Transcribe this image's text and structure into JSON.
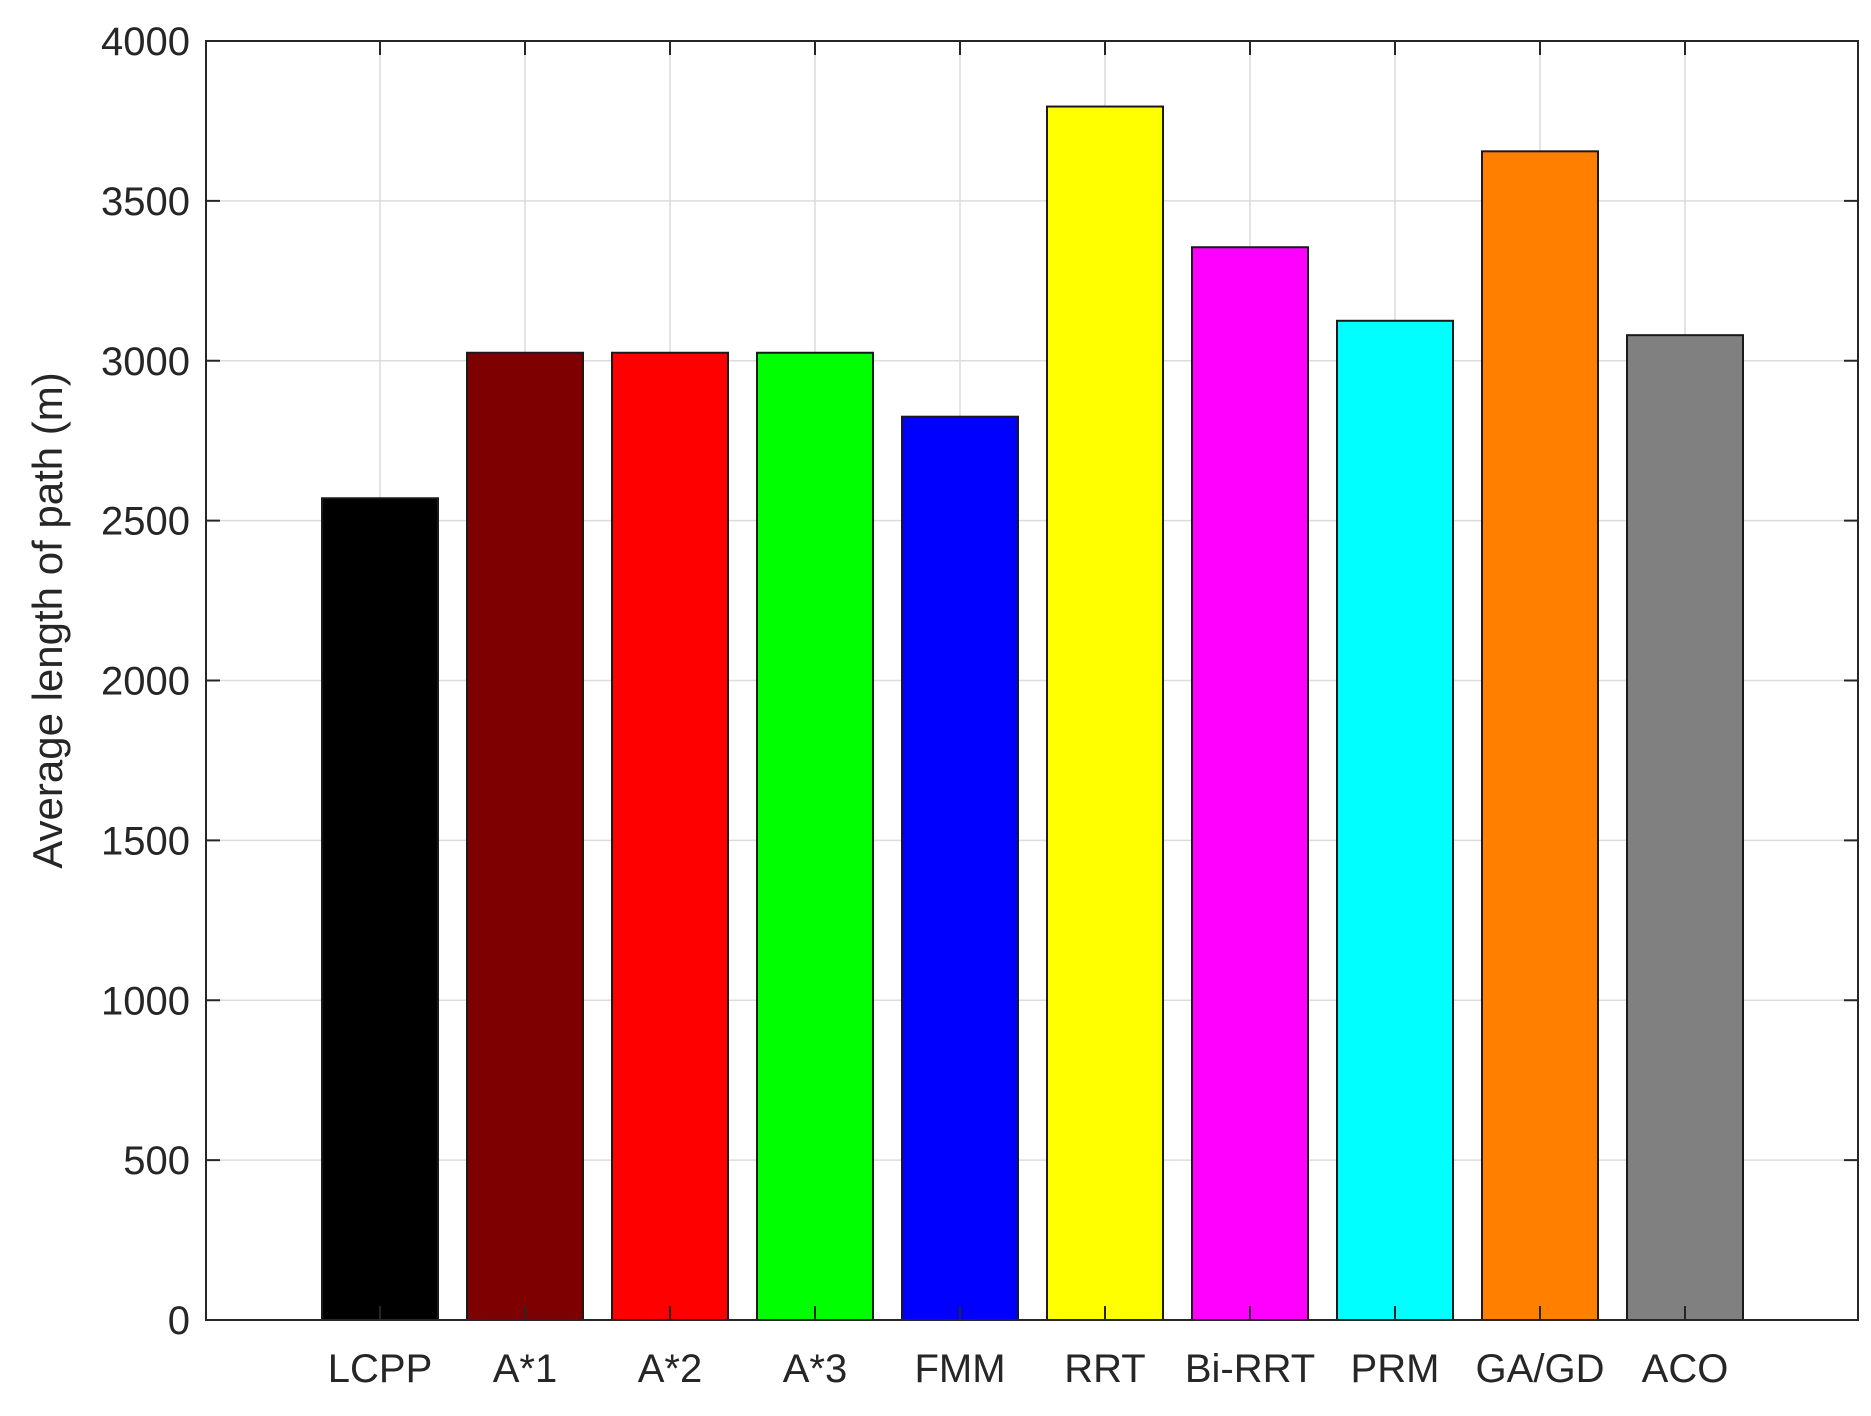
{
  "chart_data": {
    "type": "bar",
    "title": "",
    "xlabel": "",
    "ylabel": "Average length of path (m)",
    "ylim": [
      0,
      4000
    ],
    "yticks": [
      0,
      500,
      1000,
      1500,
      2000,
      2500,
      3000,
      3500,
      4000
    ],
    "grid": true,
    "categories": [
      "LCPP",
      "A*1",
      "A*2",
      "A*3",
      "FMM",
      "RRT",
      "Bi-RRT",
      "PRM",
      "GA/GD",
      "ACO"
    ],
    "values": [
      2570,
      3025,
      3025,
      3025,
      2825,
      3795,
      3355,
      3125,
      3655,
      3080
    ],
    "colors": [
      "#000000",
      "#7f0000",
      "#ff0000",
      "#00ff00",
      "#0000ff",
      "#ffff00",
      "#ff00ff",
      "#00ffff",
      "#ff8000",
      "#808080"
    ]
  }
}
